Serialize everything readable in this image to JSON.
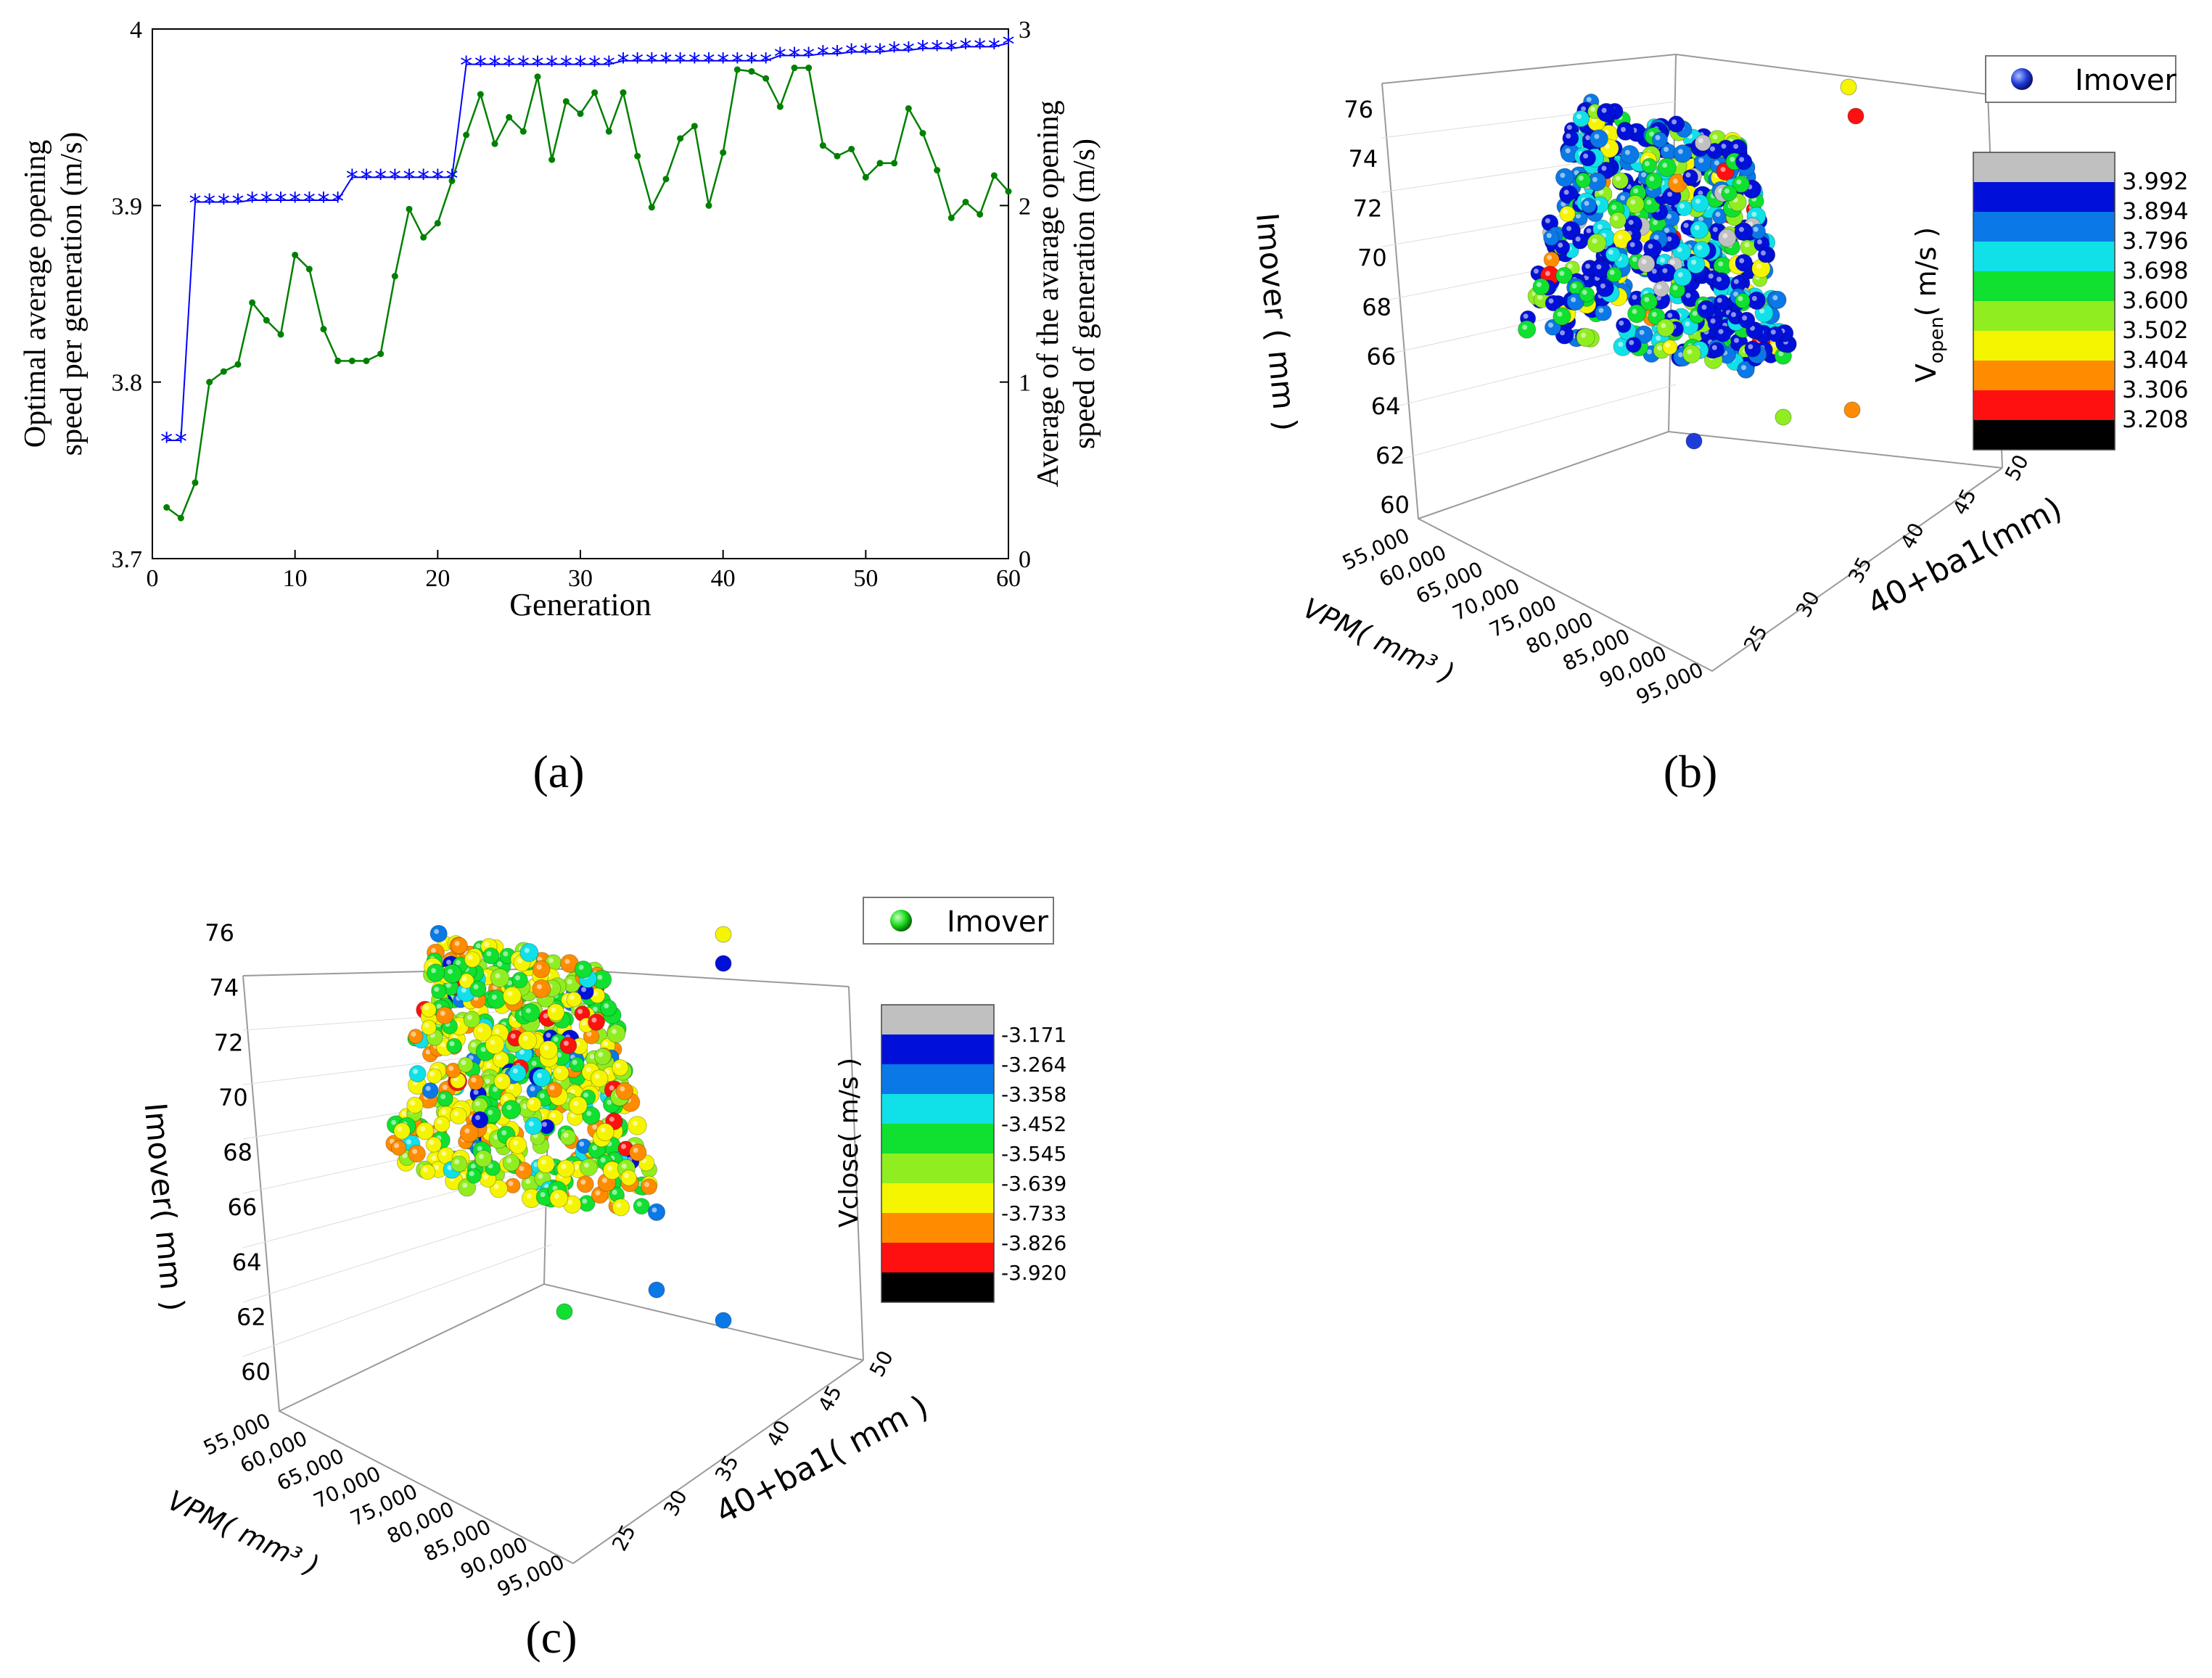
{
  "figure": {
    "panel_labels": [
      "(a)",
      "(b)",
      "(c)"
    ]
  },
  "chart_data": [
    {
      "type": "line",
      "title": "",
      "xlabel": "Generation",
      "ylabel_left": "Optimal average opening speed per generation (m/s)",
      "ylabel_left_lines": [
        "Optimal average opening",
        "speed per generation (m/s)"
      ],
      "ylabel_right": "Average of the avarage opening speed of generation (m/s)",
      "ylabel_right_lines": [
        "Average of the avarage opening",
        "speed of generation (m/s)"
      ],
      "xlim": [
        0,
        60
      ],
      "ylim_left": [
        3.7,
        4.0
      ],
      "ylim_right": [
        0,
        3
      ],
      "xticks": [
        0,
        10,
        20,
        30,
        40,
        50,
        60
      ],
      "yticks_left": [
        "3.7",
        "3.8",
        "3.9",
        "4"
      ],
      "yticks_right": [
        "0",
        "1",
        "2",
        "3"
      ],
      "grid": false,
      "x": [
        1,
        2,
        3,
        4,
        5,
        6,
        7,
        8,
        9,
        10,
        11,
        12,
        13,
        14,
        15,
        16,
        17,
        18,
        19,
        20,
        21,
        22,
        23,
        24,
        25,
        26,
        27,
        28,
        29,
        30,
        31,
        32,
        33,
        34,
        35,
        36,
        37,
        38,
        39,
        40,
        41,
        42,
        43,
        44,
        45,
        46,
        47,
        48,
        49,
        50,
        51,
        52,
        53,
        54,
        55,
        56,
        57,
        58,
        59,
        60
      ],
      "series": [
        {
          "axis": "left",
          "color": "#0000ff",
          "marker": "star",
          "values": [
            3.767,
            3.767,
            3.902,
            3.902,
            3.902,
            3.902,
            3.903,
            3.903,
            3.903,
            3.903,
            3.903,
            3.903,
            3.903,
            3.916,
            3.916,
            3.916,
            3.916,
            3.916,
            3.916,
            3.916,
            3.916,
            3.98,
            3.98,
            3.98,
            3.98,
            3.98,
            3.98,
            3.98,
            3.98,
            3.98,
            3.98,
            3.98,
            3.982,
            3.982,
            3.982,
            3.982,
            3.982,
            3.982,
            3.982,
            3.982,
            3.982,
            3.982,
            3.982,
            3.985,
            3.985,
            3.985,
            3.986,
            3.986,
            3.987,
            3.987,
            3.987,
            3.988,
            3.988,
            3.989,
            3.989,
            3.989,
            3.99,
            3.99,
            3.99,
            3.992
          ]
        },
        {
          "axis": "right",
          "color": "#008000",
          "marker": "dot",
          "values": [
            0.29,
            0.23,
            0.43,
            1.0,
            1.06,
            1.1,
            1.45,
            1.35,
            1.27,
            1.72,
            1.64,
            1.3,
            1.12,
            1.12,
            1.12,
            1.16,
            1.6,
            1.98,
            1.82,
            1.9,
            2.14,
            2.4,
            2.63,
            2.35,
            2.5,
            2.42,
            2.73,
            2.26,
            2.59,
            2.52,
            2.64,
            2.42,
            2.64,
            2.28,
            1.99,
            2.15,
            2.38,
            2.45,
            2.0,
            2.3,
            2.77,
            2.76,
            2.72,
            2.56,
            2.78,
            2.78,
            2.34,
            2.28,
            2.32,
            2.16,
            2.24,
            2.24,
            2.55,
            2.41,
            2.2,
            1.93,
            2.02,
            1.95,
            2.17,
            2.08
          ]
        }
      ]
    },
    {
      "type": "scatter",
      "title": "",
      "legend": "Imover",
      "legend_placement": "top-right",
      "xlabel": "VPM( mm³ )",
      "ylabel": "40+ba1(mm)",
      "zlabel": "Imover ( mm )",
      "colorbar_label": "V_open( m/s )",
      "colorbar_label_main": "V",
      "colorbar_label_sub": "open",
      "colorbar_label_rest": "( m/s )",
      "zticks": [
        "76",
        "74",
        "72",
        "70",
        "68",
        "66",
        "64",
        "62",
        "60"
      ],
      "xticks": [
        "55,000",
        "60,000",
        "65,000",
        "70,000",
        "75,000",
        "80,000",
        "85,000",
        "90,000",
        "95,000"
      ],
      "yticks": [
        "25",
        "30",
        "35",
        "40",
        "45",
        "50"
      ],
      "colorbar_levels": [
        "3.992",
        "3.894",
        "3.796",
        "3.698",
        "3.600",
        "3.502",
        "3.404",
        "3.306",
        "3.208"
      ],
      "colorbar_colors": [
        "#c0c0c0",
        "#0010d8",
        "#0a78e6",
        "#10e0e8",
        "#10e030",
        "#90ee20",
        "#f5f500",
        "#ff8c00",
        "#ff1010",
        "#000000"
      ],
      "point_color_dominant": "#1e3cd8"
    },
    {
      "type": "scatter",
      "title": "",
      "legend": "Imover",
      "legend_placement": "top-right",
      "xlabel": "VPM( mm³ )",
      "ylabel": "40+ba1( mm )",
      "zlabel": "Imover( mm )",
      "colorbar_label": "Vclose( m/s )",
      "zticks": [
        "76",
        "74",
        "72",
        "70",
        "68",
        "66",
        "64",
        "62",
        "60"
      ],
      "xticks": [
        "55,000",
        "60,000",
        "65,000",
        "70,000",
        "75,000",
        "80,000",
        "85,000",
        "90,000",
        "95,000"
      ],
      "yticks": [
        "25",
        "30",
        "35",
        "40",
        "45",
        "50"
      ],
      "colorbar_levels": [
        "-3.171",
        "-3.264",
        "-3.358",
        "-3.452",
        "-3.545",
        "-3.639",
        "-3.733",
        "-3.826",
        "-3.920"
      ],
      "colorbar_colors": [
        "#c0c0c0",
        "#0010d8",
        "#0a78e6",
        "#10e0e8",
        "#10e030",
        "#90ee20",
        "#f5f500",
        "#ff8c00",
        "#ff1010",
        "#000000"
      ],
      "point_color_dominant": "#e8e010"
    }
  ]
}
